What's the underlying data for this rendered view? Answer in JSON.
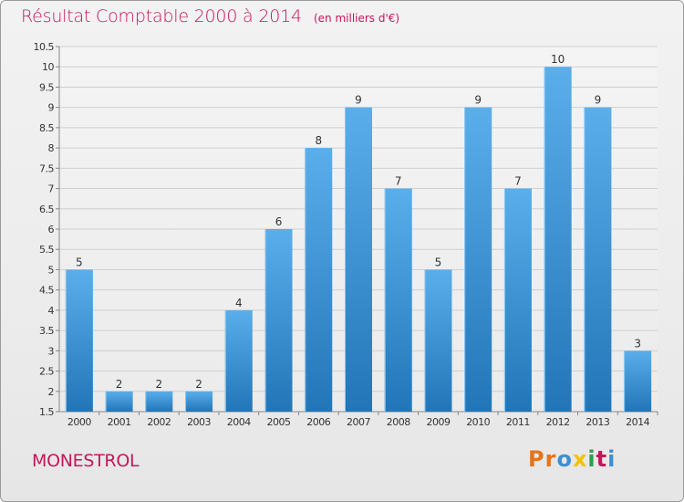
{
  "header": {
    "title": "Résultat Comptable 2000 à 2014",
    "unit": "(en milliers d'€)"
  },
  "footer": {
    "commune": "MONESTROL",
    "brand": "Proxiti",
    "brand_colors": [
      "#e8731a",
      "#e8731a",
      "#3b8fd4",
      "#f2c200",
      "#2e9e4d",
      "#c2185b",
      "#3b8fd4"
    ]
  },
  "colors": {
    "title": "#c2185b",
    "bar_top": "#5aaeea",
    "bar_bottom": "#2276b8",
    "grid": "#cfcfcf",
    "axis_text": "#333333"
  },
  "chart_data": {
    "type": "bar",
    "categories": [
      "2000",
      "2001",
      "2002",
      "2003",
      "2004",
      "2005",
      "2006",
      "2007",
      "2008",
      "2009",
      "2010",
      "2011",
      "2012",
      "2013",
      "2014"
    ],
    "values": [
      5,
      2,
      2,
      2,
      4,
      6,
      8,
      9,
      7,
      5,
      9,
      7,
      10,
      9,
      3
    ],
    "data_labels": [
      "5",
      "2",
      "2",
      "2",
      "4",
      "6",
      "8",
      "9",
      "7",
      "5",
      "9",
      "7",
      "10",
      "9",
      "3"
    ],
    "ylim": [
      1.5,
      10.5
    ],
    "yticks": [
      1.5,
      2,
      2.5,
      3,
      3.5,
      4,
      4.5,
      5,
      5.5,
      6,
      6.5,
      7,
      7.5,
      8,
      8.5,
      9,
      9.5,
      10,
      10.5
    ],
    "ytick_labels": [
      "1.5",
      "2",
      "2.5",
      "3",
      "3.5",
      "4",
      "4.5",
      "5",
      "5.5",
      "6",
      "6.5",
      "7",
      "7.5",
      "8",
      "8.5",
      "9",
      "9.5",
      "10",
      "10.5"
    ],
    "grid": true,
    "xlabel": "",
    "ylabel": ""
  }
}
